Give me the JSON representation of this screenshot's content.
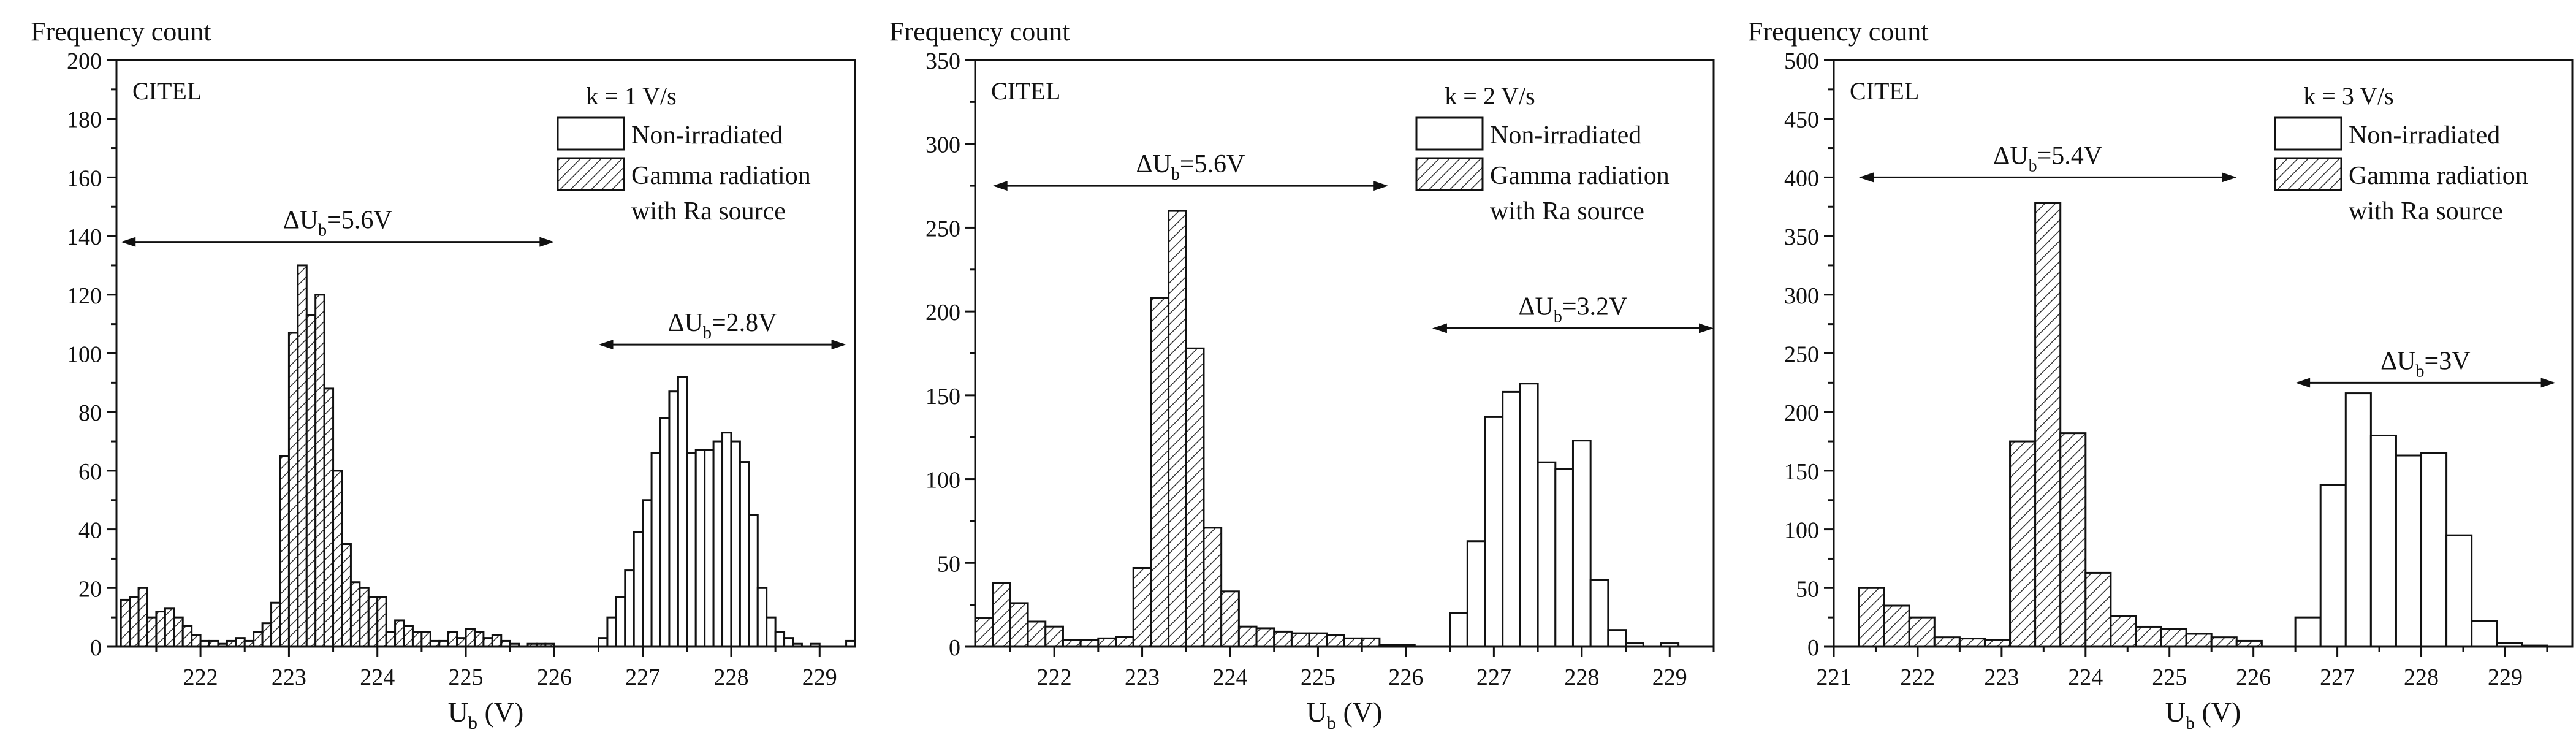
{
  "chart_data": [
    {
      "type": "bar",
      "title": "",
      "ylabel": "Frequency count",
      "xlabel_main": "U",
      "xlabel_sub": "b",
      "xlabel_unit": " (V)",
      "corner_label": "CITEL",
      "condition": "k = 1 V/s",
      "legend": {
        "position": "top-right",
        "entries": [
          {
            "label": "Non-irradiated",
            "pattern": "none"
          },
          {
            "label_line1": "Gamma radiation",
            "label_line2": "with Ra source",
            "pattern": "hatch"
          }
        ]
      },
      "ylim": [
        0,
        200
      ],
      "yticks": [
        0,
        20,
        40,
        60,
        80,
        100,
        120,
        140,
        160,
        180,
        200
      ],
      "xlim": [
        221.05,
        229.4
      ],
      "xticks": [
        222,
        223,
        224,
        225,
        226,
        227,
        228,
        229
      ],
      "bin_width": 0.1,
      "series": [
        {
          "name": "Gamma radiation with Ra source",
          "start": 221.1,
          "values": [
            16,
            17,
            20,
            10,
            12,
            13,
            10,
            7,
            4,
            2,
            2,
            1,
            2,
            3,
            2,
            5,
            8,
            15,
            65,
            107,
            130,
            113,
            120,
            88,
            60,
            35,
            22,
            20,
            17,
            17,
            5,
            9,
            7,
            5,
            5,
            2,
            2,
            5,
            3,
            6,
            5,
            3,
            4,
            2,
            1,
            0,
            1,
            1,
            1
          ]
        },
        {
          "name": "Non-irradiated",
          "start": 226.5,
          "values": [
            3,
            10,
            17,
            26,
            39,
            50,
            66,
            78,
            87,
            92,
            66,
            67,
            67,
            70,
            73,
            70,
            63,
            45,
            20,
            10,
            5,
            3,
            1,
            0,
            1,
            0,
            0,
            0,
            2
          ]
        }
      ],
      "annotations": [
        {
          "delta": "Δ",
          "main": "U",
          "sub": "b",
          "value": "=5.6V",
          "from": 221.1,
          "to": 226.0,
          "y": 138
        },
        {
          "delta": "Δ",
          "main": "U",
          "sub": "b",
          "value": "=2.8V",
          "from": 226.5,
          "to": 229.3,
          "y": 103
        }
      ]
    },
    {
      "type": "bar",
      "title": "",
      "ylabel": "Frequency count",
      "xlabel_main": "U",
      "xlabel_sub": "b",
      "xlabel_unit": " (V)",
      "corner_label": "CITEL",
      "condition": "k = 2 V/s",
      "legend": {
        "position": "top-right",
        "entries": [
          {
            "label": "Non-irradiated",
            "pattern": "none"
          },
          {
            "label_line1": "Gamma radiation",
            "label_line2": "with Ra source",
            "pattern": "hatch"
          }
        ]
      },
      "ylim": [
        0,
        350
      ],
      "yticks": [
        0,
        50,
        100,
        150,
        200,
        250,
        300,
        350
      ],
      "xlim": [
        221.1,
        229.5
      ],
      "xticks": [
        222,
        223,
        224,
        225,
        226,
        227,
        228,
        229
      ],
      "bin_width": 0.2,
      "series": [
        {
          "name": "Gamma radiation with Ra source",
          "start": 221.1,
          "values": [
            17,
            38,
            26,
            15,
            12,
            4,
            4,
            5,
            6,
            47,
            208,
            260,
            178,
            71,
            33,
            12,
            11,
            9,
            8,
            8,
            7,
            5,
            5,
            1,
            1
          ]
        },
        {
          "name": "Non-irradiated",
          "start": 226.5,
          "values": [
            20,
            63,
            137,
            152,
            157,
            110,
            106,
            123,
            40,
            10,
            2,
            0,
            2
          ]
        }
      ],
      "annotations": [
        {
          "delta": "Δ",
          "main": "U",
          "sub": "b",
          "value": "=5.6V",
          "from": 221.3,
          "to": 225.8,
          "y": 275
        },
        {
          "delta": "Δ",
          "main": "U",
          "sub": "b",
          "value": "=3.2V",
          "from": 226.3,
          "to": 229.5,
          "y": 190
        }
      ]
    },
    {
      "type": "bar",
      "title": "",
      "ylabel": "Frequency count",
      "xlabel_main": "U",
      "xlabel_sub": "b",
      "xlabel_unit": " (V)",
      "corner_label": "CITEL",
      "condition": "k = 3 V/s",
      "legend": {
        "position": "top-right",
        "entries": [
          {
            "label": "Non-irradiated",
            "pattern": "none"
          },
          {
            "label_line1": "Gamma radiation",
            "label_line2": "with Ra source",
            "pattern": "hatch"
          }
        ]
      },
      "ylim": [
        0,
        500
      ],
      "yticks": [
        0,
        50,
        100,
        150,
        200,
        250,
        300,
        350,
        400,
        450,
        500
      ],
      "xlim": [
        221.0,
        229.8
      ],
      "xticks": [
        221,
        222,
        223,
        224,
        225,
        226,
        227,
        228,
        229
      ],
      "bin_width": 0.3,
      "series": [
        {
          "name": "Gamma radiation with Ra source",
          "start": 221.3,
          "values": [
            50,
            35,
            25,
            8,
            7,
            6,
            175,
            378,
            182,
            63,
            26,
            17,
            15,
            11,
            8,
            5
          ]
        },
        {
          "name": "Non-irradiated",
          "start": 226.5,
          "values": [
            25,
            138,
            216,
            180,
            163,
            165,
            95,
            22,
            3,
            1
          ]
        }
      ],
      "annotations": [
        {
          "delta": "Δ",
          "main": "U",
          "sub": "b",
          "value": "=5.4V",
          "from": 221.3,
          "to": 225.8,
          "y": 400
        },
        {
          "delta": "Δ",
          "main": "U",
          "sub": "b",
          "value": "=3V",
          "from": 226.5,
          "to": 229.6,
          "y": 225
        }
      ]
    }
  ]
}
